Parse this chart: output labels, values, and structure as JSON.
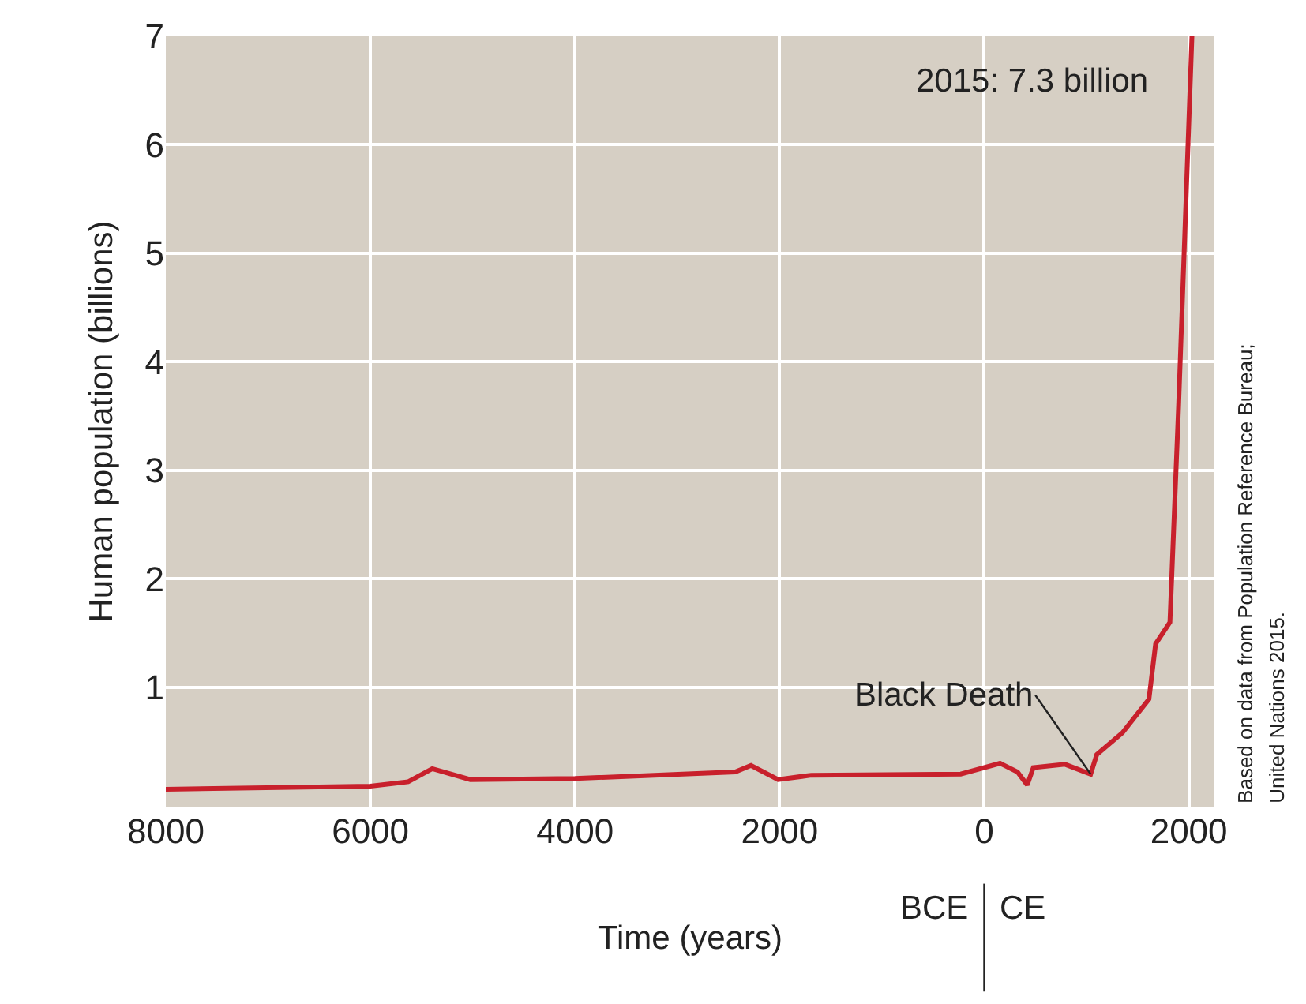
{
  "chart_data": {
    "type": "line",
    "xlabel": "Time (years)",
    "ylabel": "Human population (billions)",
    "x": [
      -8000,
      -6000,
      -5630,
      -5395,
      -5023,
      -4000,
      -2434,
      -2280,
      -2015,
      -1690,
      -230,
      155,
      325,
      420,
      480,
      790,
      1040,
      1100,
      1350,
      1610,
      1675,
      1815,
      1900,
      2030
    ],
    "series": [
      {
        "color": "#c8202c",
        "values": [
          0.06,
          0.09,
          0.13,
          0.25,
          0.15,
          0.16,
          0.22,
          0.28,
          0.15,
          0.19,
          0.2,
          0.3,
          0.22,
          0.1,
          0.26,
          0.29,
          0.2,
          0.38,
          0.58,
          0.89,
          1.4,
          1.6,
          3.6,
          7.0
        ]
      }
    ],
    "xlim": [
      -8000,
      2250
    ],
    "ylim": [
      -0.1,
      7
    ],
    "xticks": [
      {
        "value": -8000,
        "label": "8000"
      },
      {
        "value": -6000,
        "label": "6000"
      },
      {
        "value": -4000,
        "label": "4000"
      },
      {
        "value": -2000,
        "label": "2000"
      },
      0,
      2000
    ],
    "yticks": [
      1,
      2,
      3,
      4,
      5,
      6,
      7
    ],
    "grid": true,
    "marker": "none",
    "line_style": "solid",
    "annotations": [
      "2015: 7.3 billion",
      {
        "text": "Black Death",
        "x": 1040,
        "y": 0.2
      },
      "BCE",
      "CE",
      "Based on data from Population Reference Bureau;",
      "United Nations 2015."
    ]
  }
}
